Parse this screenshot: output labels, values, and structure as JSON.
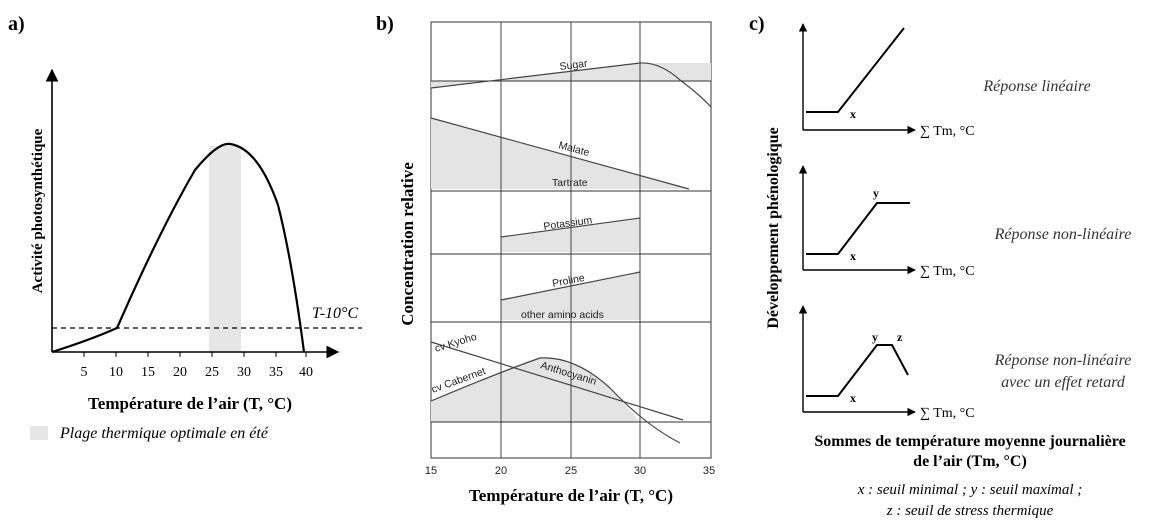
{
  "panel_a": {
    "letter": "a)",
    "ylabel": "Activité photosynthétique",
    "xlabel": "Température de l’air (T, °C)",
    "threshold_label": "T-10°C",
    "x_ticks": [
      "5",
      "10",
      "15",
      "20",
      "25",
      "30",
      "35",
      "40"
    ],
    "legend_text": "Plage thermique optimale en été",
    "shade_color": "#e6e6e6"
  },
  "panel_b": {
    "letter": "b)",
    "ylabel": "Concentration relative",
    "xlabel": "Température de l’air (T, °C)",
    "x_ticks": [
      "15",
      "20",
      "25",
      "30",
      "35"
    ],
    "labels": {
      "sugar": "Sugar",
      "malate": "Malate",
      "tartrate": "Tartrate",
      "potassium": "Potassium",
      "proline": "Proline",
      "other_amino": "other amino acids",
      "kyoho": "cv Kyoho",
      "cabernet": "cv Cabernet",
      "anthocyanin": "Anthocyanin"
    }
  },
  "panel_c": {
    "letter": "c)",
    "ylabel": "Développement phénologique",
    "x_axis_label": "∑ Tm, °C",
    "responses": [
      "Réponse linéaire",
      "Réponse non-linéaire",
      "Réponse non-linéaire",
      "avec un effet retard"
    ],
    "marks": {
      "x": "x",
      "y": "y",
      "z": "z"
    },
    "title_line1": "Sommes de température moyenne journalière",
    "title_line2": "de l’air (Tm, °C)",
    "legend_line1": "x : seuil minimal ; y : seuil maximal ;",
    "legend_line2": "z : seuil de stress thermique"
  }
}
